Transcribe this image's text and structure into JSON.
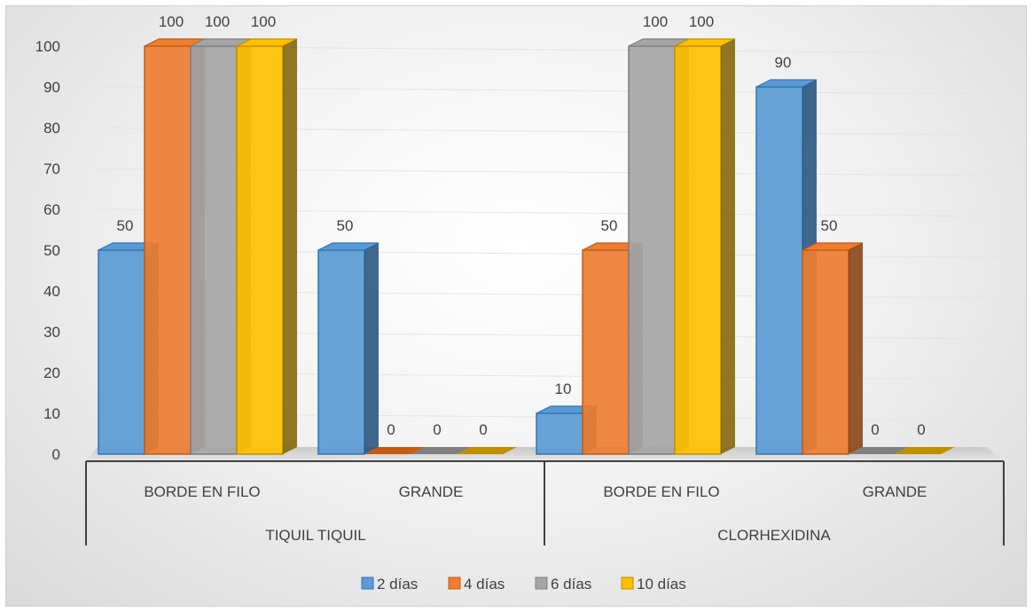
{
  "chart_data": {
    "type": "bar",
    "groups": [
      {
        "label": "TIQUIL TIQUIL",
        "categories": [
          "BORDE EN FILO",
          "GRANDE"
        ]
      },
      {
        "label": "CLORHEXIDINA",
        "categories": [
          "BORDE EN FILO",
          "GRANDE"
        ]
      }
    ],
    "categories": [
      "BORDE EN FILO",
      "GRANDE",
      "BORDE EN FILO",
      "GRANDE"
    ],
    "series": [
      {
        "name": "2 días",
        "values": [
          50,
          50,
          10,
          90
        ],
        "color": "#5b9bd5",
        "dark": "#2e75b6",
        "side": "#1f4e79"
      },
      {
        "name": "4 días",
        "values": [
          100,
          0,
          50,
          50
        ],
        "color": "#ed7d31",
        "dark": "#c55a11",
        "side": "#843c0c"
      },
      {
        "name": "6 días",
        "values": [
          100,
          0,
          100,
          0
        ],
        "color": "#a5a5a5",
        "dark": "#7f7f7f",
        "side": "#595959"
      },
      {
        "name": "10 días",
        "values": [
          100,
          0,
          100,
          0
        ],
        "color": "#ffc000",
        "dark": "#bf9000",
        "side": "#7f6000"
      }
    ],
    "yticks": [
      0,
      10,
      20,
      30,
      40,
      50,
      60,
      70,
      80,
      90,
      100
    ],
    "ylim": [
      0,
      100
    ],
    "legend_position": "bottom",
    "grid": true
  }
}
